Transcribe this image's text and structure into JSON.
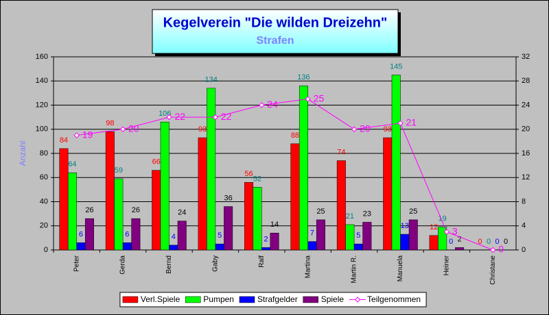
{
  "chart_data": {
    "type": "bar",
    "title": "Kegelverein \"Die wilden Dreizehn\"",
    "subtitle": "Strafen",
    "y_label": "Anzahl",
    "categories": [
      "Peter",
      "Gerda",
      "Bernd",
      "Gaby",
      "Ralf",
      "Martina",
      "Martin R.",
      "Manuela",
      "Heiner",
      "Christane"
    ],
    "series": [
      {
        "name": "Verl.Spiele",
        "color": "#ff0000",
        "label_color": "#ff0000",
        "values": [
          84,
          98,
          66,
          93,
          56,
          88,
          74,
          93,
          12,
          0
        ]
      },
      {
        "name": "Pumpen",
        "color": "#00ff00",
        "label_color": "#008080",
        "values": [
          64,
          59,
          106,
          134,
          52,
          136,
          21,
          145,
          19,
          0
        ]
      },
      {
        "name": "Strafgelder",
        "color": "#0000ff",
        "label_color": "#0000ff",
        "values": [
          6,
          6,
          4,
          5,
          2,
          7,
          5,
          13,
          0,
          0
        ]
      },
      {
        "name": "Spiele",
        "color": "#800080",
        "label_color": "#000000",
        "values": [
          26,
          26,
          24,
          36,
          14,
          25,
          23,
          25,
          2,
          0
        ]
      },
      {
        "name": "Teilgenommen",
        "type": "line",
        "axis": "y2",
        "color": "#ff00ff",
        "label_color": "#ff00ff",
        "values": [
          19,
          20,
          22,
          22,
          24,
          25,
          20,
          21,
          3,
          0
        ]
      }
    ],
    "ylim": [
      0,
      160
    ],
    "yticks": [
      0,
      20,
      40,
      60,
      80,
      100,
      120,
      140,
      160
    ],
    "y2lim": [
      0,
      32
    ],
    "y2ticks": [
      0,
      4,
      8,
      12,
      16,
      20,
      24,
      28,
      32
    ],
    "grid": true,
    "legend": "bottom"
  }
}
